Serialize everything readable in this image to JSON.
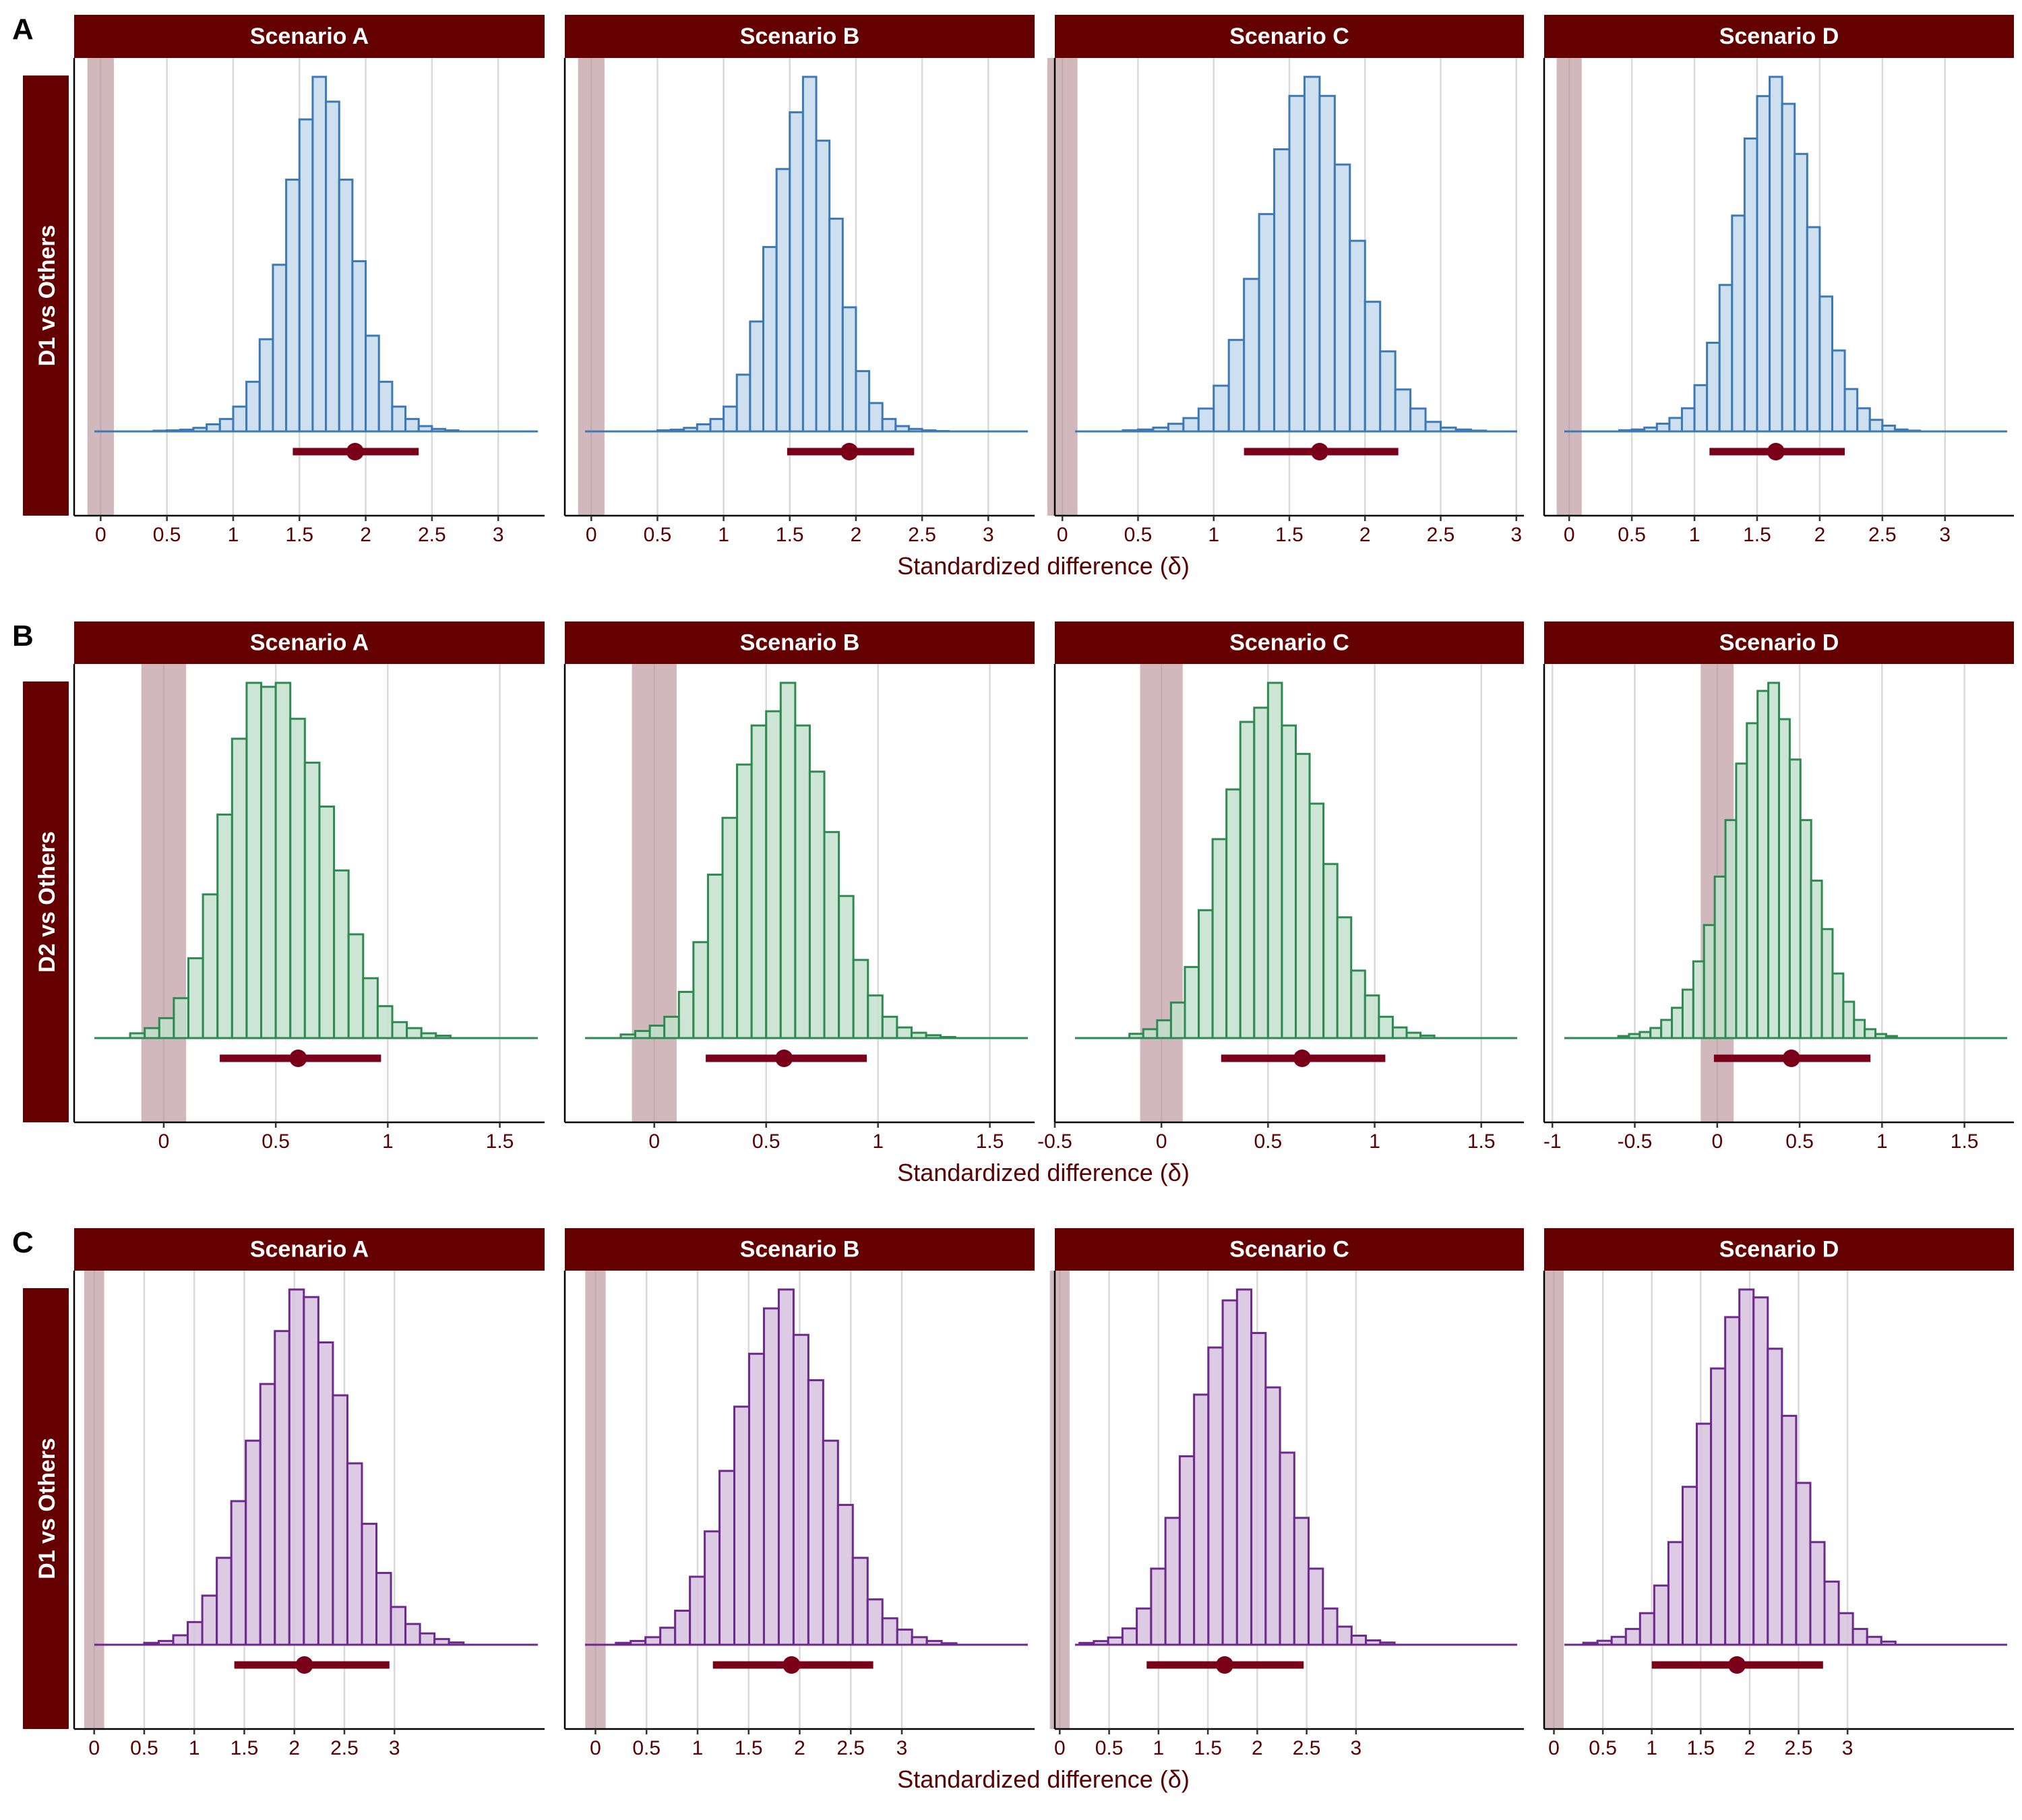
{
  "colors": {
    "strip_bg": "#650000",
    "strip_text": "#ffffff",
    "rope": "#b89298",
    "interval": "#7a0019",
    "grid": "#d9d9d9",
    "axis_text": "#5a0000",
    "rows": [
      {
        "fill": "#c5d9ec",
        "stroke": "#3d7ab5"
      },
      {
        "fill": "#c3e0cc",
        "stroke": "#2f8a52"
      },
      {
        "fill": "#d7c2df",
        "stroke": "#6d2a8c"
      }
    ]
  },
  "chart_data": [
    {
      "type": "histogram",
      "panel_label": "A",
      "row_label": "D1 vs Others",
      "xlabel": "Standardized difference (δ)",
      "ylabel": "",
      "rope": [
        -0.1,
        0.1
      ],
      "bin_width": 0.1,
      "panels": [
        {
          "title": "Scenario A",
          "xlim": [
            -0.2,
            3.35
          ],
          "ticks": [
            0,
            0.5,
            1,
            1.5,
            2,
            2.5,
            3
          ],
          "tick_labels": [
            "0",
            "0.5",
            "1",
            "1.5",
            "2",
            "2.5",
            "3"
          ],
          "bins_start": 0.4,
          "counts": [
            0.2,
            0.3,
            0.5,
            1,
            2,
            3.5,
            7,
            14,
            26,
            47,
            71,
            88,
            100,
            93,
            71,
            48,
            27,
            14,
            7,
            3.5,
            1.5,
            0.7,
            0.3
          ],
          "point": 1.92,
          "interval": [
            1.45,
            2.4
          ]
        },
        {
          "title": "Scenario B",
          "xlim": [
            -0.2,
            3.35
          ],
          "ticks": [
            0,
            0.5,
            1,
            1.5,
            2,
            2.5,
            3
          ],
          "tick_labels": [
            "0",
            "0.5",
            "1",
            "1.5",
            "2",
            "2.5",
            "3"
          ],
          "bins_start": 0.5,
          "counts": [
            0.3,
            0.5,
            1,
            2,
            3.5,
            7,
            16,
            31,
            52,
            74,
            90,
            100,
            82,
            60,
            35,
            17,
            8,
            3.5,
            1.5,
            0.7,
            0.3,
            0.1
          ],
          "point": 1.95,
          "interval": [
            1.48,
            2.44
          ]
        },
        {
          "title": "Scenario C",
          "xlim": [
            -0.05,
            3.05
          ],
          "ticks": [
            0,
            0.5,
            1,
            1.5,
            2,
            2.5,
            3
          ],
          "tick_labels": [
            "0",
            "0.5",
            "1",
            "1.5",
            "2",
            "2.5",
            "3"
          ],
          "bins_start": 0.4,
          "counts": [
            0.3,
            0.5,
            1,
            2,
            3.5,
            6,
            12,
            24,
            40,
            57,
            74,
            88,
            93,
            88,
            70,
            50,
            34,
            21,
            11,
            6,
            2.5,
            1,
            0.5,
            0.2
          ],
          "point": 1.7,
          "interval": [
            1.2,
            2.22
          ]
        },
        {
          "title": "Scenario D",
          "xlim": [
            -0.2,
            3.55
          ],
          "ticks": [
            0,
            0.5,
            1,
            1.5,
            2,
            2.5,
            3
          ],
          "tick_labels": [
            "0",
            "0.5",
            "1",
            "1.5",
            "2",
            "2.5",
            "3"
          ],
          "bins_start": 0.4,
          "counts": [
            0.3,
            0.5,
            1,
            2,
            3.5,
            6,
            12,
            23,
            38,
            56,
            76,
            87,
            92,
            85,
            72,
            53,
            35,
            21,
            11,
            6,
            3,
            1.5,
            0.5,
            0.2
          ],
          "point": 1.65,
          "interval": [
            1.12,
            2.2
          ]
        }
      ]
    },
    {
      "type": "histogram",
      "panel_label": "B",
      "row_label": "D2 vs Others",
      "xlabel": "Standardized difference (δ)",
      "ylabel": "",
      "rope": [
        -0.1,
        0.1
      ],
      "bin_width": 0.065,
      "panels": [
        {
          "title": "Scenario A",
          "xlim": [
            -0.4,
            1.7
          ],
          "ticks": [
            0,
            0.5,
            1,
            1.5
          ],
          "tick_labels": [
            "0",
            "0.5",
            "1",
            "1.5"
          ],
          "bins_start": -0.15,
          "counts": [
            1.2,
            2.5,
            5,
            10,
            20,
            36,
            56,
            75,
            89,
            88,
            89,
            80,
            69,
            58,
            42,
            26,
            15,
            8,
            4,
            2.5,
            1.2,
            0.6
          ],
          "point": 0.6,
          "interval": [
            0.25,
            0.97
          ]
        },
        {
          "title": "Scenario B",
          "xlim": [
            -0.4,
            1.7
          ],
          "ticks": [
            0,
            0.5,
            1,
            1.5
          ],
          "tick_labels": [
            "0",
            "0.5",
            "1",
            "1.5"
          ],
          "bins_start": -0.15,
          "counts": [
            1,
            2,
            3.5,
            6,
            13,
            27,
            46,
            62,
            77,
            88,
            92,
            100,
            88,
            75,
            58,
            40,
            22,
            12,
            6,
            3,
            1.5,
            0.8,
            0.3
          ],
          "point": 0.58,
          "interval": [
            0.23,
            0.95
          ]
        },
        {
          "title": "Scenario C",
          "xlim": [
            -0.5,
            1.7
          ],
          "ticks": [
            -0.5,
            0,
            0.5,
            1,
            1.5
          ],
          "tick_labels": [
            "-0.5",
            "0",
            "0.5",
            "1",
            "1.5"
          ],
          "bins_start": -0.15,
          "counts": [
            1.2,
            2.5,
            5,
            10,
            20,
            36,
            56,
            70,
            89,
            93,
            100,
            88,
            80,
            66,
            49,
            34,
            19,
            12,
            6,
            3,
            1.5,
            0.7
          ],
          "point": 0.66,
          "interval": [
            0.28,
            1.05
          ]
        },
        {
          "title": "Scenario D",
          "xlim": [
            -1.05,
            1.8
          ],
          "ticks": [
            -1,
            -0.5,
            0,
            0.5,
            1,
            1.5
          ],
          "tick_labels": [
            "-1",
            "-0.5",
            "0",
            "0.5",
            "1",
            "1.5"
          ],
          "bins_start": -0.6,
          "counts": [
            0.5,
            1,
            1.5,
            2.5,
            4.5,
            7.5,
            12,
            19,
            28,
            40,
            54,
            68,
            78,
            86,
            88,
            79,
            69,
            54,
            39,
            27,
            16,
            9,
            4.5,
            2.2,
            1,
            0.5
          ],
          "point": 0.45,
          "interval": [
            -0.02,
            0.93
          ]
        }
      ]
    },
    {
      "type": "histogram",
      "panel_label": "C",
      "row_label": "D1 vs Others",
      "xlabel": "Standardized difference (δ)",
      "ylabel": "",
      "rope": [
        -0.1,
        0.1
      ],
      "bin_width": 0.145,
      "panels": [
        {
          "title": "Scenario A",
          "xlim": [
            -0.2,
            4.5
          ],
          "ticks": [
            0,
            0.5,
            1,
            1.5,
            2,
            2.5,
            3
          ],
          "tick_labels": [
            "0",
            "0.5",
            "1",
            "1.5",
            "2",
            "2.5",
            "3"
          ],
          "bins_start": 0.5,
          "counts": [
            0.5,
            1,
            2.5,
            6,
            13,
            23,
            38,
            54,
            69,
            83,
            94,
            92,
            80,
            66,
            48,
            32,
            19,
            10,
            5.5,
            3,
            1.5,
            0.6
          ],
          "point": 2.1,
          "interval": [
            1.4,
            2.95
          ]
        },
        {
          "title": "Scenario B",
          "xlim": [
            -0.3,
            4.3
          ],
          "ticks": [
            0,
            0.5,
            1,
            1.5,
            2,
            2.5,
            3
          ],
          "tick_labels": [
            "0",
            "0.5",
            "1",
            "1.5",
            "2",
            "2.5",
            "3"
          ],
          "bins_start": 0.2,
          "counts": [
            0.5,
            1,
            2,
            4.5,
            9,
            18,
            30,
            46,
            63,
            77,
            89,
            94,
            82,
            70,
            54,
            37,
            23,
            12,
            7,
            4,
            2,
            1,
            0.4
          ],
          "point": 1.92,
          "interval": [
            1.15,
            2.72
          ]
        },
        {
          "title": "Scenario C",
          "xlim": [
            -0.05,
            4.7
          ],
          "ticks": [
            0,
            0.5,
            1,
            1.5,
            2,
            2.5,
            3
          ],
          "tick_labels": [
            "0",
            "0.5",
            "1",
            "1.5",
            "2",
            "2.5",
            "3"
          ],
          "bins_start": 0.2,
          "counts": [
            0.5,
            1,
            2,
            4.5,
            10,
            21,
            35,
            52,
            69,
            82,
            95,
            98,
            86,
            71,
            53,
            35,
            21,
            10,
            5,
            2.5,
            1.2,
            0.6
          ],
          "point": 1.67,
          "interval": [
            0.88,
            2.47
          ]
        },
        {
          "title": "Scenario D",
          "xlim": [
            -0.1,
            4.7
          ],
          "ticks": [
            0,
            0.5,
            1,
            1.5,
            2,
            2.5,
            3
          ],
          "tick_labels": [
            "0",
            "0.5",
            "1",
            "1.5",
            "2",
            "2.5",
            "3"
          ],
          "bins_start": 0.3,
          "counts": [
            0.5,
            1,
            2,
            4,
            8,
            15,
            26,
            40,
            56,
            70,
            83,
            90,
            88,
            75,
            58,
            41,
            26,
            16,
            8,
            4,
            2,
            0.8
          ],
          "point": 1.87,
          "interval": [
            1.0,
            2.75
          ]
        }
      ]
    }
  ]
}
